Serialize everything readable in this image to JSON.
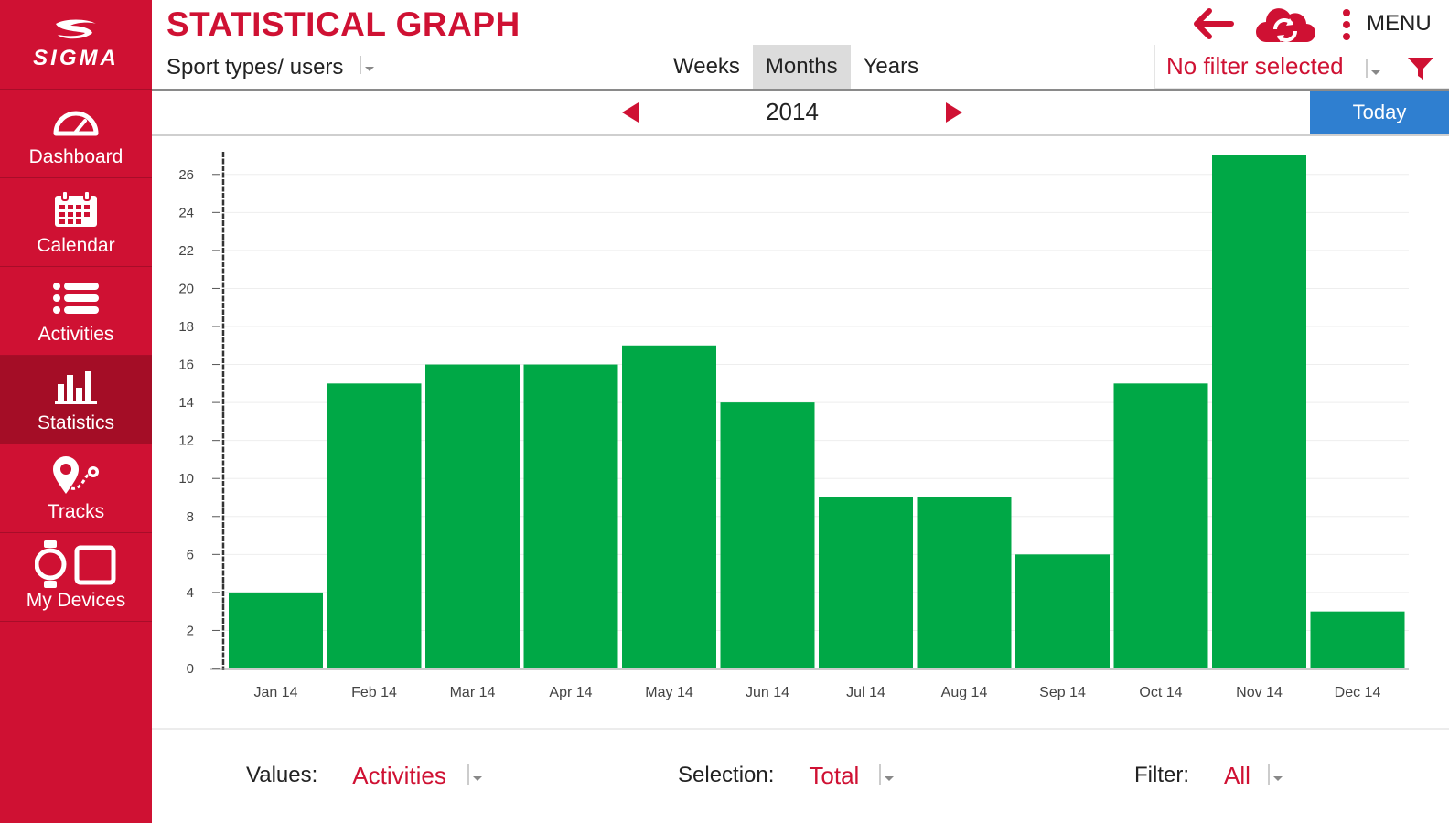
{
  "brand": {
    "logo_text": "SIGMA",
    "color_primary": "#cf1133",
    "color_today": "#2f7fd0",
    "color_bar": "#00a846"
  },
  "sidebar": {
    "items": [
      {
        "label": "Dashboard",
        "icon": "speedometer-icon"
      },
      {
        "label": "Calendar",
        "icon": "calendar-icon"
      },
      {
        "label": "Activities",
        "icon": "list-icon"
      },
      {
        "label": "Statistics",
        "icon": "bar-chart-icon",
        "active": true
      },
      {
        "label": "Tracks",
        "icon": "route-icon"
      },
      {
        "label": "My Devices",
        "icon": "devices-icon"
      }
    ]
  },
  "header": {
    "title": "STATISTICAL GRAPH",
    "menu_label": "MENU",
    "sport_select": "Sport types/ users",
    "period_tabs": [
      {
        "label": "Weeks",
        "active": false
      },
      {
        "label": "Months",
        "active": true
      },
      {
        "label": "Years",
        "active": false
      }
    ],
    "filter_text": "No filter selected"
  },
  "year_nav": {
    "year": "2014",
    "today_label": "Today"
  },
  "chart_data": {
    "type": "bar",
    "categories": [
      "Jan 14",
      "Feb 14",
      "Mar 14",
      "Apr 14",
      "May 14",
      "Jun 14",
      "Jul 14",
      "Aug 14",
      "Sep 14",
      "Oct 14",
      "Nov 14",
      "Dec 14"
    ],
    "values": [
      4,
      15,
      16,
      16,
      17,
      14,
      9,
      9,
      6,
      15,
      27,
      3
    ],
    "ylim": [
      0,
      27
    ],
    "yticks": [
      0,
      2,
      4,
      6,
      8,
      10,
      12,
      14,
      16,
      18,
      20,
      22,
      24,
      26
    ],
    "grid": true,
    "bar_color": "#00a846"
  },
  "footer": {
    "values_label": "Values:",
    "values_value": "Activities",
    "selection_label": "Selection:",
    "selection_value": "Total",
    "filter_label": "Filter:",
    "filter_value": "All"
  }
}
